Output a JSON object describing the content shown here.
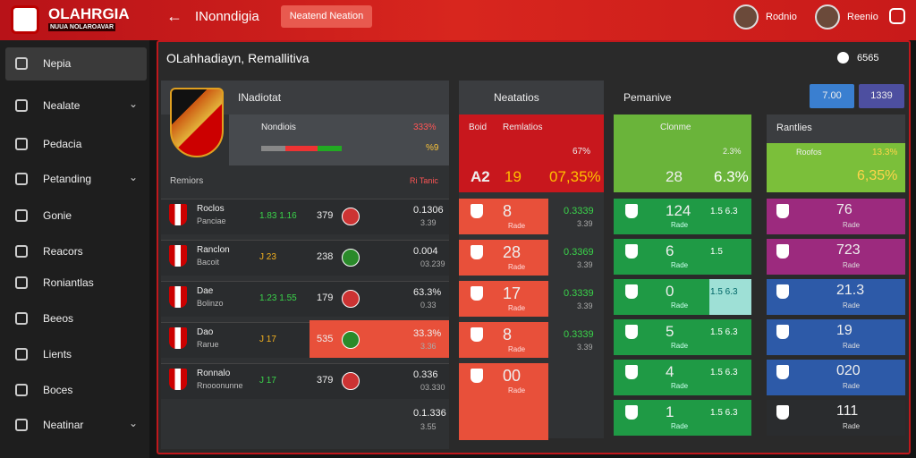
{
  "header": {
    "logo_title": "OLAHRGIA",
    "logo_subtitle": "NUUA NOLAROAVAR",
    "title": "INonndigia",
    "button": "Neatend Neation",
    "users": [
      "Rodnio",
      "Reenio"
    ]
  },
  "sidebar": [
    "Nepia",
    "Nealate",
    "Pedacia",
    "Petanding",
    "Gonie",
    "Reacors",
    "Roniantlas",
    "Beeos",
    "Lients",
    "Boces",
    "Neatinar"
  ],
  "main": {
    "title": "OLahhadiayn, Remallitiva",
    "badge": "6565",
    "col1": {
      "title": "INadiotat",
      "team": "Nondiois",
      "team_pct": "333%",
      "team_val": "%9",
      "header_left": "Remiors",
      "header_right": "Ri Tanic",
      "rows": [
        {
          "name": "Roclos",
          "sub": "Panciae",
          "mid": "1.83 1.16",
          "score": "379",
          "val": "0.1306",
          "val2": "3.39"
        },
        {
          "name": "Ranclon",
          "sub": "Bacoit",
          "mid": "J 23",
          "score": "238",
          "val": "0.004",
          "val2": "03.239"
        },
        {
          "name": "Dae",
          "sub": "Bolinzo",
          "mid": "1.23 1.55",
          "score": "179",
          "val": "63.3%",
          "val2": "0.33"
        },
        {
          "name": "Dao",
          "sub": "Rarue",
          "mid": "J 17",
          "score": "535",
          "val": "33.3%",
          "val2": "3.36"
        },
        {
          "name": "Ronnalo",
          "sub": "Rnooonunne",
          "mid": "J 17",
          "score": "379",
          "val": "0.336",
          "val2": "03.330"
        }
      ],
      "footer": [
        "0.1.336",
        "3.55"
      ]
    },
    "col2": {
      "title": "Neatatios",
      "card_left": "Boid",
      "card_title": "Remlatios",
      "card_val": "67%",
      "card_a": "A2",
      "card_b": "19",
      "card_c": "07,35%",
      "rows": [
        {
          "big": "8",
          "sub": "Rade",
          "val": "0.3339",
          "val2": "3.39"
        },
        {
          "big": "28",
          "sub": "Rade",
          "val": "0.3369",
          "val2": "3.39"
        },
        {
          "big": "17",
          "sub": "Rade",
          "val": "0.3339",
          "val2": "3.39"
        },
        {
          "big": "8",
          "sub": "Rade",
          "val": "0.3339",
          "val2": "3.39"
        },
        {
          "big": "00",
          "sub": "Rade",
          "val": "",
          "val2": ""
        }
      ]
    },
    "col3": {
      "title": "Pemanive",
      "buttons": [
        "7.00",
        "1339"
      ],
      "card_title": "Clonme",
      "card_val": "28",
      "card_pct": "6.3%",
      "card_small": "2.3%",
      "rows": [
        {
          "big": "124",
          "sub": "Rade",
          "val": "1.5 6.3"
        },
        {
          "big": "6",
          "sub": "Rade",
          "val": "1.5"
        },
        {
          "big": "0",
          "sub": "Rade",
          "val": "1.5 6.3"
        },
        {
          "big": "5",
          "sub": "Rade",
          "val": "1.5 6.3"
        },
        {
          "big": "4",
          "sub": "Rade",
          "val": "1.5 6.3"
        },
        {
          "big": "1",
          "sub": "Rade",
          "val": "1.5 6.3"
        }
      ]
    },
    "col4": {
      "title": "Rantlies",
      "card_title": "Roofos",
      "card_pct": "13.3%",
      "card_val": "6,35%",
      "rows": [
        {
          "big": "76",
          "sub": "Rade"
        },
        {
          "big": "723",
          "sub": "Rade"
        },
        {
          "big": "21.3",
          "sub": "Rade"
        },
        {
          "big": "19",
          "sub": "Rade"
        },
        {
          "big": "020",
          "sub": "Rade"
        },
        {
          "big": "111",
          "sub": "Rade"
        }
      ]
    }
  }
}
